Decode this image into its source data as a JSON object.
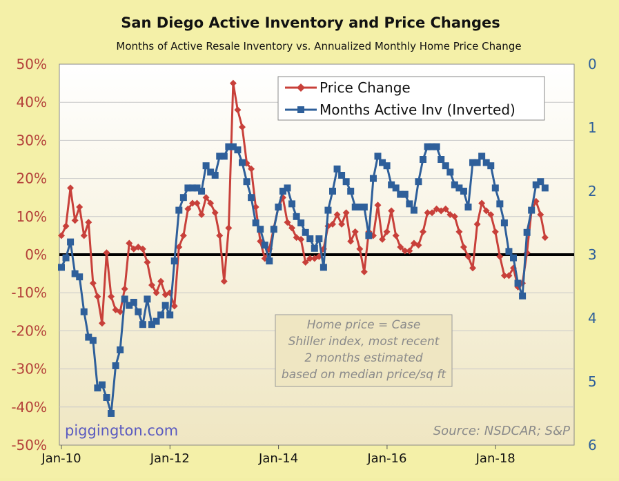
{
  "chart_data": {
    "type": "line",
    "title": "San Diego Active Inventory and Price Changes",
    "subtitle": "Months of Active Resale Inventory vs. Annualized Monthly Home Price Change",
    "x_tick_labels": [
      "Jan-10",
      "Jan-12",
      "Jan-14",
      "Jan-16",
      "Jan-18"
    ],
    "x_start": "Jan-10",
    "x_frequency": "monthly",
    "y_left": {
      "ticks": [
        "50%",
        "40%",
        "30%",
        "20%",
        "10%",
        "0%",
        "-10%",
        "-20%",
        "-30%",
        "-40%",
        "-50%"
      ],
      "range": [
        -50,
        50
      ],
      "unit": "%",
      "color": "#b4413a"
    },
    "y_right": {
      "ticks": [
        "0",
        "1",
        "2",
        "3",
        "4",
        "5",
        "6"
      ],
      "range": [
        0,
        6
      ],
      "inverted": true,
      "color": "#2e5f9a"
    },
    "zero_line": true,
    "grid": "horizontal",
    "legend_position": "top-right",
    "series": [
      {
        "name": "Price Change",
        "axis": "left",
        "color": "#c8403a",
        "marker": "diamond",
        "values": [
          5,
          7.5,
          17.5,
          9,
          12.5,
          5,
          8.5,
          -7.5,
          -11,
          -18,
          0.5,
          -11,
          -14.5,
          -15,
          -9,
          3,
          1.5,
          2,
          1.5,
          -2,
          -8,
          -10,
          -7,
          -10.5,
          -10,
          -13.5,
          2,
          5,
          12,
          13.5,
          13.5,
          10.5,
          15,
          13.5,
          11,
          5,
          -7,
          7,
          45,
          38,
          33.5,
          24,
          22.5,
          12.5,
          3.5,
          -1,
          1.5,
          7,
          12.5,
          15,
          8.5,
          7,
          4.5,
          4,
          -2,
          -1,
          -1,
          -0.5,
          1.5,
          7.5,
          8,
          10.5,
          8,
          11,
          3.5,
          6,
          1.5,
          -4.5,
          6,
          5,
          13,
          4,
          6,
          11.5,
          5,
          2,
          1,
          1,
          3,
          2.5,
          6,
          11,
          11,
          12,
          11.5,
          12,
          10.5,
          10,
          6,
          2,
          -0.5,
          -3.5,
          8,
          13.5,
          11.5,
          10.5,
          6,
          -0.5,
          -5.5,
          -5.5,
          -3.5,
          -8.5,
          -7.5,
          0.5,
          11.5,
          14,
          10.5,
          4.5
        ]
      },
      {
        "name": "Months Active Inv (Inverted)",
        "axis": "right",
        "color": "#2e5f9a",
        "marker": "square",
        "values": [
          3.2,
          3.05,
          2.8,
          3.3,
          3.35,
          3.9,
          4.3,
          4.35,
          5.1,
          5.05,
          5.25,
          5.5,
          4.75,
          4.5,
          3.7,
          3.8,
          3.75,
          3.9,
          4.1,
          3.7,
          4.1,
          4.05,
          3.95,
          3.8,
          3.95,
          3.1,
          2.3,
          2.1,
          1.95,
          1.95,
          1.95,
          2.0,
          1.6,
          1.7,
          1.75,
          1.45,
          1.45,
          1.3,
          1.3,
          1.35,
          1.55,
          1.85,
          2.1,
          2.5,
          2.6,
          2.85,
          3.1,
          2.6,
          2.25,
          2.0,
          1.95,
          2.2,
          2.4,
          2.5,
          2.65,
          2.75,
          2.9,
          2.75,
          3.2,
          2.3,
          2.0,
          1.65,
          1.75,
          1.85,
          2.0,
          2.25,
          2.25,
          2.25,
          2.7,
          1.8,
          1.45,
          1.55,
          1.6,
          1.9,
          1.95,
          2.05,
          2.05,
          2.2,
          2.3,
          1.85,
          1.5,
          1.3,
          1.3,
          1.3,
          1.5,
          1.6,
          1.7,
          1.9,
          1.95,
          2.0,
          2.25,
          1.55,
          1.55,
          1.45,
          1.55,
          1.6,
          1.95,
          2.2,
          2.5,
          2.95,
          3.05,
          3.45,
          3.65,
          2.65,
          2.3,
          1.9,
          1.85,
          1.95
        ]
      }
    ],
    "annotations": [
      "Home price = Case Shiller index, most recent 2 months estimated based on median price/sq ft"
    ],
    "watermark": "piggington.com",
    "source": "Source: NSDCAR; S&P"
  },
  "colors": {
    "background": "#f4f0a8",
    "plot_top": "#ffffff",
    "plot_bottom": "#efe7c5",
    "zero_line": "#000000",
    "note_text": "#8a8a8a"
  }
}
